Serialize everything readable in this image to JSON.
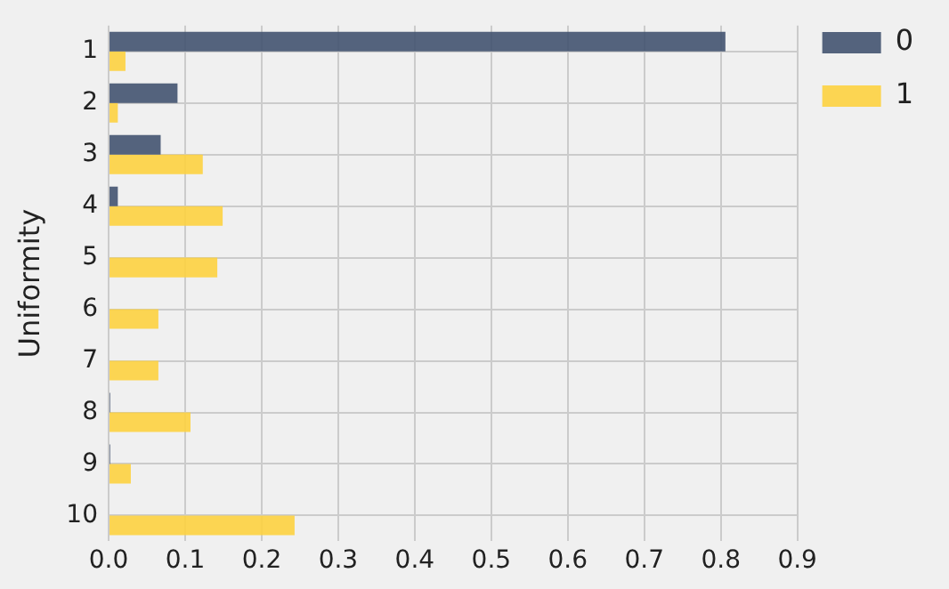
{
  "chart_data": {
    "type": "bar",
    "orientation": "horizontal",
    "ylabel": "Uniformity",
    "categories": [
      "1",
      "2",
      "3",
      "4",
      "5",
      "6",
      "7",
      "8",
      "9",
      "10"
    ],
    "series": [
      {
        "name": "0",
        "color": "#435370",
        "values": [
          0.806,
          0.09,
          0.068,
          0.012,
          0,
          0,
          0,
          0.002,
          0.002,
          0
        ]
      },
      {
        "name": "1",
        "color": "#fdd140",
        "values": [
          0.022,
          0.012,
          0.123,
          0.149,
          0.142,
          0.065,
          0.065,
          0.107,
          0.029,
          0.243
        ]
      }
    ],
    "xlim": [
      0,
      0.9
    ],
    "xticks": [
      {
        "value": 0,
        "label": "0.0"
      },
      0.1,
      0.2,
      0.3,
      0.4,
      0.5,
      0.6,
      0.7,
      0.8,
      0.9
    ],
    "grid": true,
    "legend": "top right"
  }
}
